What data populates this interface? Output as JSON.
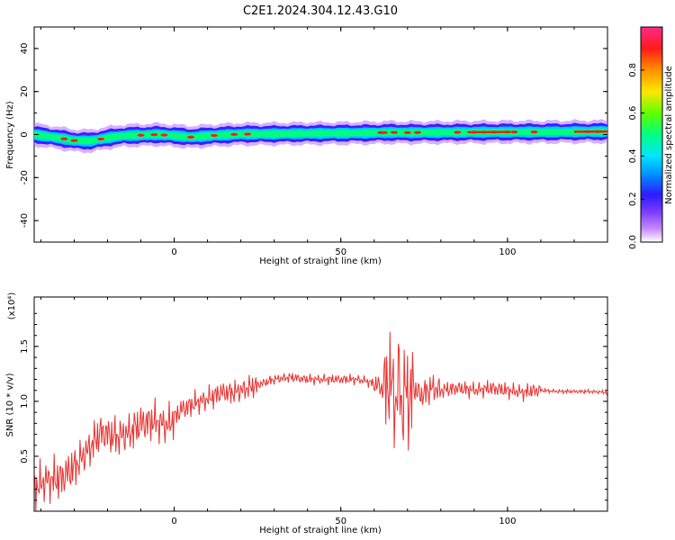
{
  "title": "C2E1.2024.304.12.43.G10",
  "colors": {
    "trace": "#e8312f",
    "background": "#ffffff",
    "axis": "#000000"
  },
  "chart_data": [
    {
      "type": "heatmap",
      "xlabel": "Height of straight line (km)",
      "ylabel": "Frequency (Hz)",
      "xlim": [
        -42,
        130
      ],
      "ylim": [
        -50,
        50
      ],
      "x_ticks": [
        "0",
        "50",
        "100"
      ],
      "y_ticks": [
        "40",
        "20",
        "0",
        "-20",
        "-40"
      ],
      "colorbar": {
        "label": "Normalized spectral amplitude",
        "range": [
          0,
          1
        ],
        "ticks": [
          "0.0",
          "0.2",
          "0.4",
          "0.6",
          "0.8"
        ],
        "colormap": [
          "#ffffff",
          "#b870ff",
          "#3b1eff",
          "#00c8ff",
          "#00ff7a",
          "#5cff00",
          "#ffe600",
          "#ff8c00",
          "#ff1a1a",
          "#ff2a8a"
        ]
      },
      "ridge": {
        "x": [
          -42,
          -35,
          -30,
          -25,
          -20,
          -15,
          -10,
          -5,
          0,
          5,
          10,
          20,
          30,
          40,
          50,
          60,
          65,
          70,
          80,
          90,
          100,
          110,
          120,
          130
        ],
        "y": [
          0.0,
          -1.5,
          -2.8,
          -3.0,
          -1.5,
          -0.5,
          -0.3,
          0.0,
          -0.5,
          -1.2,
          -0.6,
          0.2,
          0.3,
          0.5,
          0.6,
          0.8,
          1.0,
          0.9,
          1.0,
          1.1,
          1.2,
          1.2,
          1.3,
          1.4
        ]
      }
    },
    {
      "type": "line",
      "xlabel": "Height of straight line (km)",
      "ylabel": "SNR (10 * v/v)",
      "y_multiplier": "(x10⁴)",
      "xlim": [
        -42,
        130
      ],
      "ylim": [
        0,
        1.95
      ],
      "x_ticks": [
        "0",
        "50",
        "100"
      ],
      "y_ticks": [
        "0.5",
        "1.0",
        "1.5"
      ],
      "series": [
        {
          "x": [
            -42,
            -38,
            -34,
            -30,
            -26,
            -22,
            -18,
            -14,
            -10,
            -6,
            -2,
            2,
            6,
            10,
            14,
            18,
            22,
            26,
            30,
            35,
            40,
            45,
            50,
            55,
            58,
            61,
            63,
            64.5,
            65.5,
            66.5,
            67.5,
            68.5,
            69.5,
            70.5,
            72,
            74,
            77,
            80,
            85,
            90,
            95,
            100,
            105,
            108,
            110,
            115,
            120,
            125,
            130
          ],
          "y": [
            0.22,
            0.28,
            0.3,
            0.4,
            0.55,
            0.72,
            0.68,
            0.7,
            0.8,
            0.82,
            0.78,
            0.92,
            0.98,
            1.02,
            1.08,
            1.08,
            1.12,
            1.16,
            1.2,
            1.22,
            1.2,
            1.2,
            1.2,
            1.2,
            1.18,
            1.15,
            1.1,
            1.2,
            1.12,
            0.95,
            1.25,
            0.9,
            1.15,
            1.0,
            1.12,
            1.05,
            1.12,
            1.1,
            1.12,
            1.1,
            1.12,
            1.1,
            1.08,
            1.1,
            1.1,
            1.09,
            1.09,
            1.09,
            1.08
          ]
        }
      ]
    }
  ]
}
